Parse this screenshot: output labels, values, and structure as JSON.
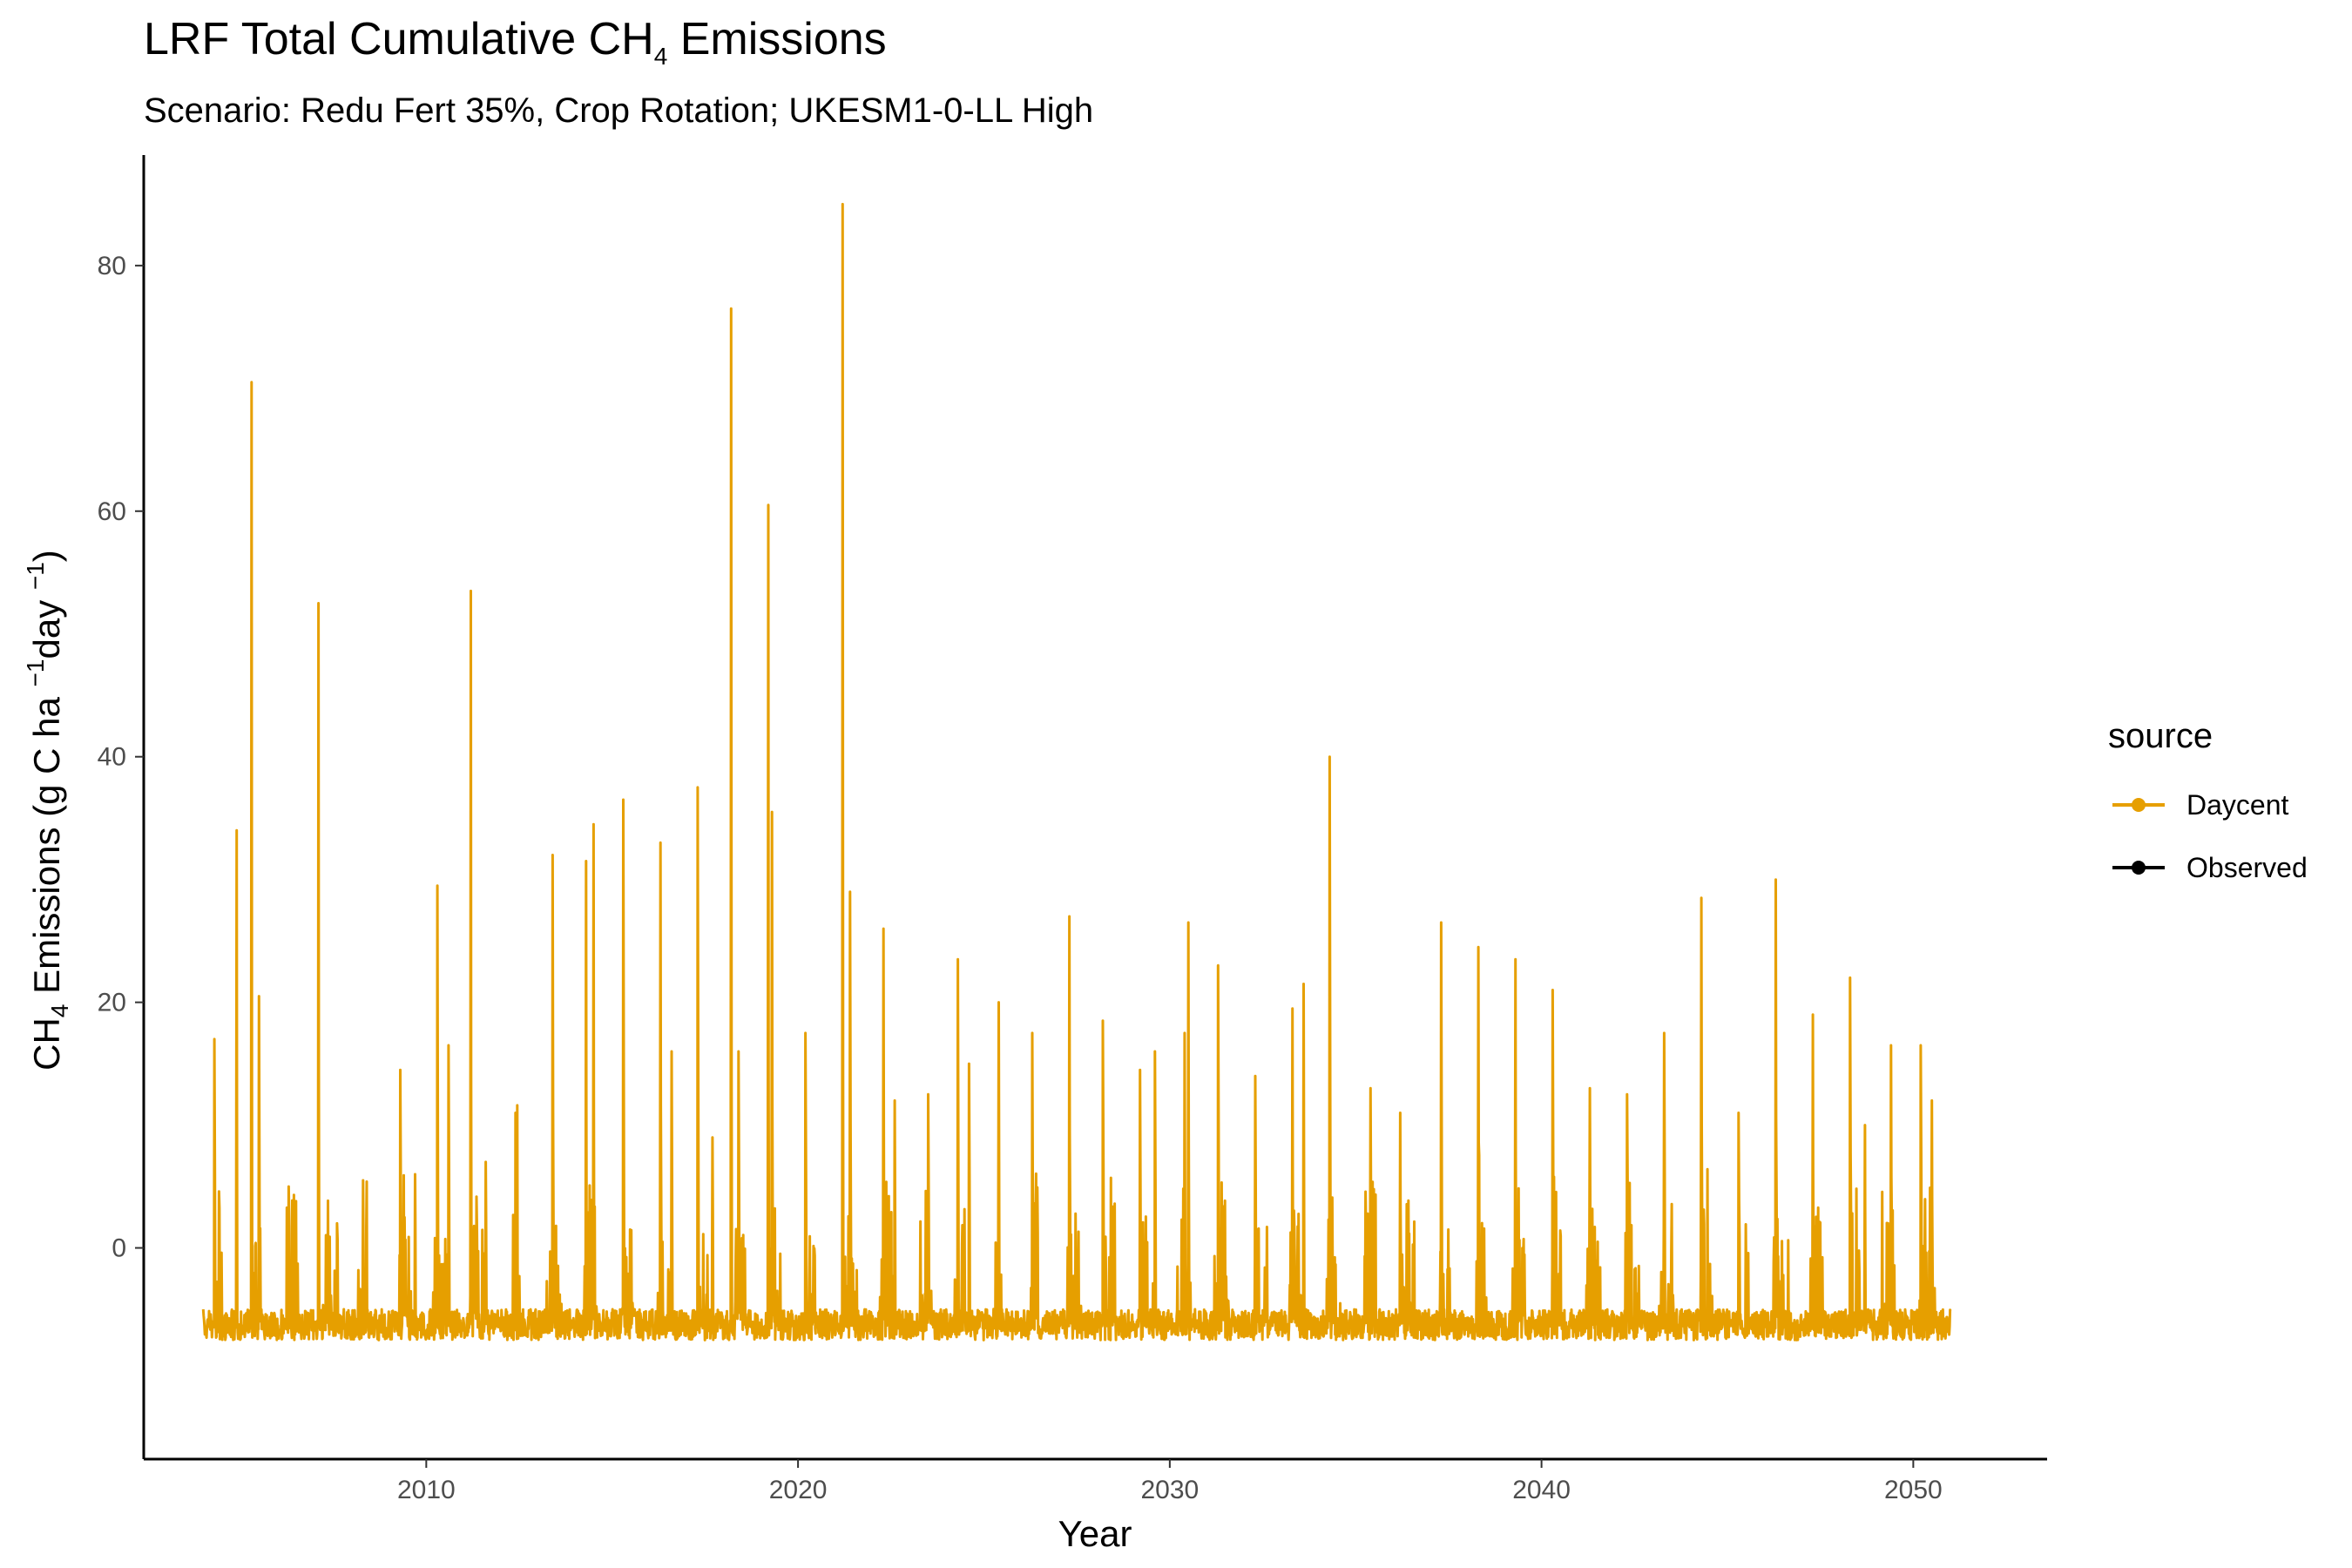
{
  "chart_data": {
    "type": "line",
    "title": {
      "prefix": "LRF Total Cumulative CH",
      "subscript": "4",
      "suffix": " Emissions"
    },
    "subtitle": "Scenario: Redu Fert 35%, Crop Rotation; UKESM1-0-LL High",
    "xlabel": "Year",
    "ylabel": {
      "ch": "CH",
      "four": "4",
      "main": " Emissions (g C ha ",
      "exp1": "−1",
      "day": "day ",
      "exp2": "−1",
      "close": ")"
    },
    "xlim": [
      2002.4,
      2053.6
    ],
    "ylim": [
      -17.2,
      89
    ],
    "x_ticks": [
      2010,
      2020,
      2030,
      2040,
      2050
    ],
    "y_ticks": [
      0,
      20,
      40,
      60,
      80
    ],
    "grid": false,
    "legend": {
      "title": "source",
      "placement": "right",
      "entries": [
        {
          "label": "Daycent",
          "color": "#E69F00"
        },
        {
          "label": "Observed",
          "color": "#000000"
        }
      ]
    },
    "series": [
      {
        "name": "Daycent",
        "color": "#E69F00",
        "baseline": -5,
        "baseline_min": -9,
        "x_range": [
          2004.0,
          2051.0
        ],
        "peaks": [
          {
            "x": 2004.3,
            "y": 17
          },
          {
            "x": 2004.9,
            "y": 34
          },
          {
            "x": 2005.3,
            "y": 70.5
          },
          {
            "x": 2005.5,
            "y": 20.5
          },
          {
            "x": 2006.3,
            "y": 5
          },
          {
            "x": 2007.1,
            "y": 52.5
          },
          {
            "x": 2007.6,
            "y": 2
          },
          {
            "x": 2008.3,
            "y": 5.5
          },
          {
            "x": 2009.3,
            "y": 14.5
          },
          {
            "x": 2009.7,
            "y": 6
          },
          {
            "x": 2010.3,
            "y": 29.5
          },
          {
            "x": 2010.6,
            "y": 16.5
          },
          {
            "x": 2011.2,
            "y": 53.5
          },
          {
            "x": 2011.6,
            "y": 7
          },
          {
            "x": 2012.4,
            "y": 11
          },
          {
            "x": 2013.4,
            "y": 32
          },
          {
            "x": 2014.3,
            "y": 31.5
          },
          {
            "x": 2014.5,
            "y": 34.5
          },
          {
            "x": 2015.3,
            "y": 36.5
          },
          {
            "x": 2016.3,
            "y": 33
          },
          {
            "x": 2016.6,
            "y": 16
          },
          {
            "x": 2017.3,
            "y": 37.5
          },
          {
            "x": 2017.7,
            "y": 9
          },
          {
            "x": 2018.2,
            "y": 76.5
          },
          {
            "x": 2018.4,
            "y": 16
          },
          {
            "x": 2019.2,
            "y": 60.5
          },
          {
            "x": 2019.3,
            "y": 35.5
          },
          {
            "x": 2020.2,
            "y": 17.5
          },
          {
            "x": 2021.2,
            "y": 85
          },
          {
            "x": 2021.4,
            "y": 29
          },
          {
            "x": 2022.3,
            "y": 26
          },
          {
            "x": 2022.6,
            "y": 12
          },
          {
            "x": 2023.5,
            "y": 12.5
          },
          {
            "x": 2024.3,
            "y": 23.5
          },
          {
            "x": 2024.6,
            "y": 15
          },
          {
            "x": 2025.4,
            "y": 20
          },
          {
            "x": 2026.3,
            "y": 17.5
          },
          {
            "x": 2027.3,
            "y": 27
          },
          {
            "x": 2028.2,
            "y": 18.5
          },
          {
            "x": 2029.2,
            "y": 14.5
          },
          {
            "x": 2029.6,
            "y": 16
          },
          {
            "x": 2030.4,
            "y": 17.5
          },
          {
            "x": 2030.5,
            "y": 26.5
          },
          {
            "x": 2031.3,
            "y": 23
          },
          {
            "x": 2032.3,
            "y": 14
          },
          {
            "x": 2033.3,
            "y": 19.5
          },
          {
            "x": 2033.6,
            "y": 21.5
          },
          {
            "x": 2034.3,
            "y": 40
          },
          {
            "x": 2035.4,
            "y": 13
          },
          {
            "x": 2036.2,
            "y": 11
          },
          {
            "x": 2037.3,
            "y": 26.5
          },
          {
            "x": 2038.3,
            "y": 24.5
          },
          {
            "x": 2039.3,
            "y": 23.5
          },
          {
            "x": 2040.3,
            "y": 21
          },
          {
            "x": 2041.3,
            "y": 13
          },
          {
            "x": 2042.3,
            "y": 12.5
          },
          {
            "x": 2043.3,
            "y": 17.5
          },
          {
            "x": 2044.3,
            "y": 28.5
          },
          {
            "x": 2045.3,
            "y": 11
          },
          {
            "x": 2046.3,
            "y": 30
          },
          {
            "x": 2047.3,
            "y": 19
          },
          {
            "x": 2048.3,
            "y": 22
          },
          {
            "x": 2048.7,
            "y": 10
          },
          {
            "x": 2049.4,
            "y": 16.5
          },
          {
            "x": 2050.2,
            "y": 16.5
          },
          {
            "x": 2050.5,
            "y": 12
          }
        ]
      },
      {
        "name": "Observed",
        "color": "#000000",
        "points": []
      }
    ]
  }
}
